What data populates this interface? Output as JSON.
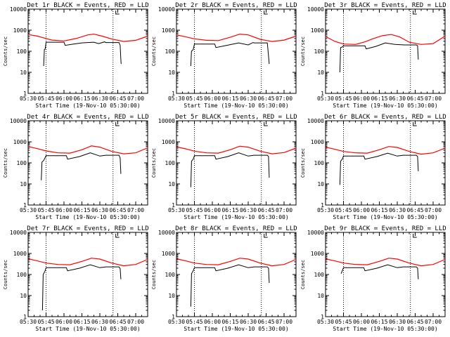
{
  "chart_data": {
    "type": "line",
    "layout": "3x3 grid",
    "common": {
      "xlabel": "Start Time (19-Nov-10 05:30:00)",
      "ylabel": "Counts/sec",
      "x_unit": "minutes since 05:30",
      "xlim": [
        0,
        100
      ],
      "x_ticks": [
        0,
        15,
        30,
        45,
        60,
        75,
        90
      ],
      "x_tick_labels": [
        "05:30",
        "05:45",
        "06:00",
        "06:15",
        "06:30",
        "06:45",
        "07:00"
      ],
      "yscale": "log",
      "ylim": [
        1,
        10000
      ],
      "y_ticks": [
        1,
        10,
        100,
        1000,
        10000
      ],
      "y_tick_labels": [
        "1",
        "10",
        "100",
        "1000",
        "10000"
      ],
      "series_colors": {
        "events": "#000000",
        "lld": "#ff0000"
      }
    },
    "panels": [
      {
        "title": "Det 1r BLACK = Events, RED = LLD",
        "vlines": [
          15,
          71
        ],
        "lld": [
          [
            0,
            620
          ],
          [
            8,
            520
          ],
          [
            15,
            400
          ],
          [
            20,
            340
          ],
          [
            30,
            310
          ],
          [
            40,
            400
          ],
          [
            50,
            600
          ],
          [
            55,
            650
          ],
          [
            62,
            520
          ],
          [
            70,
            380
          ],
          [
            80,
            290
          ],
          [
            90,
            330
          ],
          [
            100,
            520
          ]
        ],
        "events": [
          [
            13,
            20
          ],
          [
            13.6,
            120
          ],
          [
            14.3,
            130
          ],
          [
            15,
            270
          ],
          [
            30,
            270
          ],
          [
            31,
            190
          ],
          [
            38,
            220
          ],
          [
            45,
            250
          ],
          [
            55,
            270
          ],
          [
            59,
            230
          ],
          [
            64,
            280
          ],
          [
            65,
            260
          ],
          [
            76,
            260
          ],
          [
            77,
            190
          ],
          [
            77.5,
            45
          ],
          [
            77.8,
            25
          ]
        ]
      },
      {
        "title": "Det 2r BLACK = Events, RED = LLD",
        "vlines": [
          15,
          71
        ],
        "lld": [
          [
            0,
            600
          ],
          [
            8,
            480
          ],
          [
            15,
            390
          ],
          [
            25,
            330
          ],
          [
            35,
            320
          ],
          [
            45,
            460
          ],
          [
            53,
            650
          ],
          [
            60,
            600
          ],
          [
            70,
            370
          ],
          [
            80,
            290
          ],
          [
            90,
            340
          ],
          [
            100,
            520
          ]
        ],
        "events": [
          [
            12,
            20
          ],
          [
            12.5,
            100
          ],
          [
            14,
            120
          ],
          [
            15,
            220
          ],
          [
            32,
            220
          ],
          [
            33,
            150
          ],
          [
            42,
            190
          ],
          [
            52,
            250
          ],
          [
            60,
            200
          ],
          [
            64,
            260
          ],
          [
            65,
            250
          ],
          [
            76,
            250
          ],
          [
            77,
            60
          ],
          [
            77.6,
            25
          ]
        ]
      },
      {
        "title": "Det 3r BLACK = Events, RED = LLD",
        "vlines": [
          15,
          71
        ],
        "lld": [
          [
            0,
            500
          ],
          [
            8,
            290
          ],
          [
            15,
            220
          ],
          [
            25,
            210
          ],
          [
            33,
            280
          ],
          [
            40,
            400
          ],
          [
            48,
            560
          ],
          [
            55,
            620
          ],
          [
            62,
            480
          ],
          [
            70,
            270
          ],
          [
            80,
            210
          ],
          [
            90,
            230
          ],
          [
            100,
            520
          ]
        ],
        "events": [
          [
            12,
            10
          ],
          [
            12.6,
            150
          ],
          [
            14,
            160
          ],
          [
            15,
            180
          ],
          [
            33,
            180
          ],
          [
            34,
            130
          ],
          [
            42,
            170
          ],
          [
            50,
            250
          ],
          [
            58,
            210
          ],
          [
            66,
            200
          ],
          [
            76,
            200
          ],
          [
            77,
            180
          ],
          [
            77.6,
            40
          ]
        ]
      },
      {
        "title": "Det 4r BLACK = Events, RED = LLD",
        "vlines": [
          15,
          71
        ],
        "lld": [
          [
            0,
            600
          ],
          [
            8,
            470
          ],
          [
            15,
            370
          ],
          [
            25,
            300
          ],
          [
            35,
            290
          ],
          [
            45,
            420
          ],
          [
            53,
            640
          ],
          [
            60,
            560
          ],
          [
            70,
            350
          ],
          [
            80,
            270
          ],
          [
            90,
            300
          ],
          [
            100,
            520
          ]
        ],
        "events": [
          [
            11,
            15
          ],
          [
            11.6,
            110
          ],
          [
            13,
            130
          ],
          [
            15,
            220
          ],
          [
            32,
            220
          ],
          [
            33,
            150
          ],
          [
            43,
            200
          ],
          [
            52,
            300
          ],
          [
            60,
            210
          ],
          [
            65,
            230
          ],
          [
            76,
            230
          ],
          [
            77,
            170
          ],
          [
            77.6,
            30
          ]
        ]
      },
      {
        "title": "Det 5r BLACK = Events, RED = LLD",
        "vlines": [
          15,
          71
        ],
        "lld": [
          [
            0,
            570
          ],
          [
            8,
            460
          ],
          [
            15,
            360
          ],
          [
            25,
            300
          ],
          [
            35,
            290
          ],
          [
            45,
            420
          ],
          [
            53,
            620
          ],
          [
            60,
            560
          ],
          [
            70,
            360
          ],
          [
            80,
            270
          ],
          [
            90,
            310
          ],
          [
            100,
            500
          ]
        ],
        "events": [
          [
            12,
            7
          ],
          [
            12.6,
            120
          ],
          [
            14,
            150
          ],
          [
            15,
            220
          ],
          [
            32,
            220
          ],
          [
            33,
            150
          ],
          [
            43,
            200
          ],
          [
            52,
            300
          ],
          [
            60,
            210
          ],
          [
            65,
            230
          ],
          [
            76,
            230
          ],
          [
            77,
            200
          ],
          [
            77.6,
            20
          ]
        ]
      },
      {
        "title": "Det 6r BLACK = Events, RED = LLD",
        "vlines": [
          15,
          71
        ],
        "lld": [
          [
            0,
            560
          ],
          [
            8,
            440
          ],
          [
            15,
            350
          ],
          [
            25,
            300
          ],
          [
            35,
            290
          ],
          [
            45,
            420
          ],
          [
            53,
            600
          ],
          [
            60,
            540
          ],
          [
            70,
            350
          ],
          [
            80,
            260
          ],
          [
            90,
            300
          ],
          [
            100,
            500
          ]
        ],
        "events": [
          [
            12,
            9
          ],
          [
            12.6,
            120
          ],
          [
            14,
            150
          ],
          [
            15,
            210
          ],
          [
            32,
            210
          ],
          [
            33,
            150
          ],
          [
            43,
            200
          ],
          [
            52,
            290
          ],
          [
            60,
            210
          ],
          [
            65,
            230
          ],
          [
            76,
            230
          ],
          [
            77,
            200
          ],
          [
            77.6,
            40
          ]
        ]
      },
      {
        "title": "Det 7r BLACK = Events, RED = LLD",
        "vlines": [
          15,
          71
        ],
        "lld": [
          [
            0,
            560
          ],
          [
            8,
            440
          ],
          [
            15,
            350
          ],
          [
            25,
            300
          ],
          [
            35,
            290
          ],
          [
            45,
            420
          ],
          [
            53,
            600
          ],
          [
            60,
            540
          ],
          [
            70,
            350
          ],
          [
            80,
            260
          ],
          [
            90,
            300
          ],
          [
            100,
            520
          ]
        ],
        "events": [
          [
            12,
            2
          ],
          [
            12.6,
            100
          ],
          [
            14,
            140
          ],
          [
            15,
            210
          ],
          [
            32,
            210
          ],
          [
            33,
            150
          ],
          [
            43,
            200
          ],
          [
            52,
            290
          ],
          [
            60,
            210
          ],
          [
            65,
            230
          ],
          [
            76,
            230
          ],
          [
            77,
            190
          ],
          [
            77.6,
            60
          ]
        ]
      },
      {
        "title": "Det 8r BLACK = Events, RED = LLD",
        "vlines": [
          15,
          71
        ],
        "lld": [
          [
            0,
            560
          ],
          [
            8,
            440
          ],
          [
            15,
            350
          ],
          [
            25,
            300
          ],
          [
            35,
            290
          ],
          [
            45,
            420
          ],
          [
            53,
            600
          ],
          [
            60,
            540
          ],
          [
            70,
            350
          ],
          [
            80,
            260
          ],
          [
            90,
            300
          ],
          [
            100,
            520
          ]
        ],
        "events": [
          [
            12,
            3
          ],
          [
            12.6,
            110
          ],
          [
            14,
            150
          ],
          [
            15,
            210
          ],
          [
            32,
            210
          ],
          [
            33,
            150
          ],
          [
            43,
            200
          ],
          [
            52,
            290
          ],
          [
            60,
            210
          ],
          [
            65,
            230
          ],
          [
            76,
            230
          ],
          [
            77,
            200
          ],
          [
            77.6,
            40
          ]
        ]
      },
      {
        "title": "Det 9r BLACK = Events, RED = LLD",
        "vlines": [
          15,
          71
        ],
        "lld": [
          [
            0,
            560
          ],
          [
            8,
            440
          ],
          [
            15,
            350
          ],
          [
            25,
            300
          ],
          [
            35,
            290
          ],
          [
            45,
            420
          ],
          [
            53,
            600
          ],
          [
            60,
            540
          ],
          [
            70,
            350
          ],
          [
            80,
            260
          ],
          [
            90,
            300
          ],
          [
            100,
            520
          ]
        ],
        "events": [
          [
            13,
            110
          ],
          [
            14,
            150
          ],
          [
            15,
            210
          ],
          [
            32,
            210
          ],
          [
            33,
            150
          ],
          [
            43,
            200
          ],
          [
            52,
            290
          ],
          [
            60,
            210
          ],
          [
            65,
            230
          ],
          [
            76,
            230
          ],
          [
            77,
            200
          ],
          [
            77.6,
            60
          ]
        ]
      }
    ]
  }
}
